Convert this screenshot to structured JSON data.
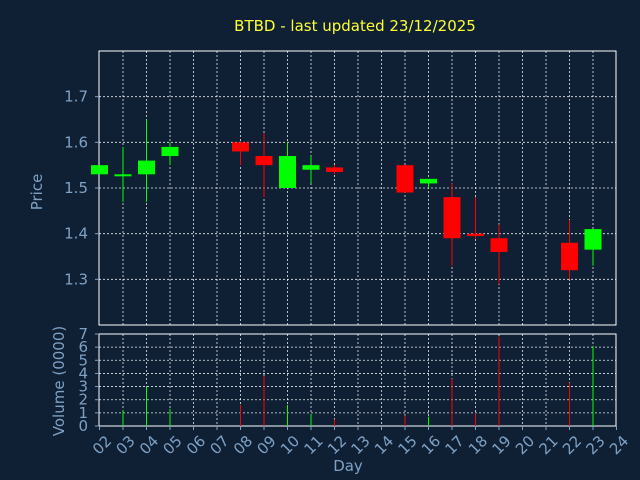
{
  "chart_data": [
    {
      "type": "candlestick",
      "title": "BTBD - last updated 23/12/2025",
      "ylabel": "Price",
      "ylim": [
        1.2,
        1.8
      ],
      "yticks": [
        "1.3",
        "1.4",
        "1.5",
        "1.6",
        "1.7"
      ],
      "ytick_values": [
        1.3,
        1.4,
        1.5,
        1.6,
        1.7
      ],
      "colors": {
        "up": "#00ff00",
        "down": "#ff0000"
      },
      "candles": [
        {
          "day": "02",
          "open": 1.53,
          "high": 1.55,
          "low": 1.53,
          "close": 1.55
        },
        {
          "day": "03",
          "open": 1.53,
          "high": 1.59,
          "low": 1.47,
          "close": 1.53
        },
        {
          "day": "04",
          "open": 1.53,
          "high": 1.65,
          "low": 1.47,
          "close": 1.56
        },
        {
          "day": "05",
          "open": 1.57,
          "high": 1.6,
          "low": 1.55,
          "close": 1.59
        },
        {
          "day": "08",
          "open": 1.6,
          "high": 1.6,
          "low": 1.55,
          "close": 1.58
        },
        {
          "day": "09",
          "open": 1.57,
          "high": 1.62,
          "low": 1.48,
          "close": 1.55
        },
        {
          "day": "10",
          "open": 1.5,
          "high": 1.6,
          "low": 1.5,
          "close": 1.57
        },
        {
          "day": "11",
          "open": 1.54,
          "high": 1.57,
          "low": 1.51,
          "close": 1.55
        },
        {
          "day": "12",
          "open": 1.545,
          "high": 1.55,
          "low": 1.53,
          "close": 1.535
        },
        {
          "day": "15",
          "open": 1.55,
          "high": 1.55,
          "low": 1.49,
          "close": 1.49
        },
        {
          "day": "16",
          "open": 1.51,
          "high": 1.52,
          "low": 1.5,
          "close": 1.52
        },
        {
          "day": "17",
          "open": 1.48,
          "high": 1.51,
          "low": 1.33,
          "close": 1.39
        },
        {
          "day": "18",
          "open": 1.4,
          "high": 1.48,
          "low": 1.39,
          "close": 1.395
        },
        {
          "day": "19",
          "open": 1.39,
          "high": 1.42,
          "low": 1.29,
          "close": 1.36
        },
        {
          "day": "22",
          "open": 1.38,
          "high": 1.43,
          "low": 1.3,
          "close": 1.32
        },
        {
          "day": "23",
          "open": 1.365,
          "high": 1.41,
          "low": 1.33,
          "close": 1.41
        }
      ]
    },
    {
      "type": "bar",
      "ylabel": "Volume (0000)",
      "xlabel": "Day",
      "ylim": [
        0,
        7
      ],
      "yticks": [
        "0",
        "1",
        "2",
        "3",
        "4",
        "5",
        "6",
        "7"
      ],
      "categories": [
        "02",
        "03",
        "04",
        "05",
        "06",
        "07",
        "08",
        "09",
        "10",
        "11",
        "12",
        "13",
        "14",
        "15",
        "16",
        "17",
        "18",
        "19",
        "20",
        "21",
        "22",
        "23",
        "24"
      ],
      "volumes": [
        {
          "day": "03",
          "value": 1.2,
          "direction": "up"
        },
        {
          "day": "04",
          "value": 3.0,
          "direction": "up"
        },
        {
          "day": "05",
          "value": 1.3,
          "direction": "up"
        },
        {
          "day": "08",
          "value": 1.6,
          "direction": "down"
        },
        {
          "day": "09",
          "value": 3.8,
          "direction": "down"
        },
        {
          "day": "10",
          "value": 1.6,
          "direction": "up"
        },
        {
          "day": "11",
          "value": 0.9,
          "direction": "up"
        },
        {
          "day": "12",
          "value": 0.5,
          "direction": "down"
        },
        {
          "day": "15",
          "value": 0.8,
          "direction": "down"
        },
        {
          "day": "16",
          "value": 0.7,
          "direction": "up"
        },
        {
          "day": "17",
          "value": 3.6,
          "direction": "down"
        },
        {
          "day": "18",
          "value": 0.9,
          "direction": "down"
        },
        {
          "day": "19",
          "value": 6.8,
          "direction": "down"
        },
        {
          "day": "22",
          "value": 3.3,
          "direction": "down"
        },
        {
          "day": "23",
          "value": 6.1,
          "direction": "up"
        }
      ]
    }
  ]
}
